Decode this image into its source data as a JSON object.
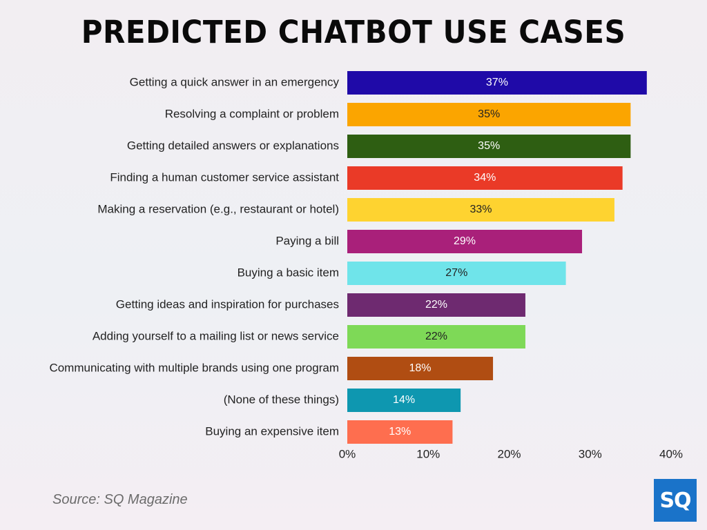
{
  "title": "PREDICTED CHATBOT USE CASES",
  "source": "Source: SQ Magazine",
  "logo": {
    "text": "SQ",
    "color": "#1a73c9"
  },
  "chart_data": {
    "type": "bar",
    "orientation": "horizontal",
    "title": "PREDICTED CHATBOT USE CASES",
    "categories": [
      "Getting a quick answer in an emergency",
      "Resolving a complaint or problem",
      "Getting detailed answers or explanations",
      "Finding a human customer service assistant",
      "Making a reservation (e.g., restaurant or hotel)",
      "Paying a bill",
      "Buying a basic item",
      "Getting ideas and inspiration for purchases",
      "Adding yourself to a mailing list or news service",
      "Communicating with multiple brands using one program",
      "(None of these things)",
      "Buying an expensive item"
    ],
    "values": [
      37,
      35,
      35,
      34,
      33,
      29,
      27,
      22,
      22,
      18,
      14,
      13
    ],
    "value_labels": [
      "37%",
      "35%",
      "35%",
      "34%",
      "33%",
      "29%",
      "27%",
      "22%",
      "22%",
      "18%",
      "14%",
      "13%"
    ],
    "colors": [
      "#1f0aa8",
      "#fba500",
      "#2e5e12",
      "#ea3a27",
      "#fed330",
      "#a9207a",
      "#6fe4ea",
      "#6e2a70",
      "#7ed957",
      "#b04d12",
      "#0e97b0",
      "#fe6e4f"
    ],
    "value_label_colors": [
      "#ffffff",
      "#222222",
      "#ffffff",
      "#ffffff",
      "#222222",
      "#ffffff",
      "#222222",
      "#ffffff",
      "#222222",
      "#ffffff",
      "#ffffff",
      "#ffffff"
    ],
    "xlim": [
      0,
      40
    ],
    "xticks": [
      0,
      10,
      20,
      30,
      40
    ],
    "xtick_labels": [
      "0%",
      "10%",
      "20%",
      "30%",
      "40%"
    ],
    "xlabel": "",
    "ylabel": "",
    "grid": false,
    "legend": "none"
  }
}
